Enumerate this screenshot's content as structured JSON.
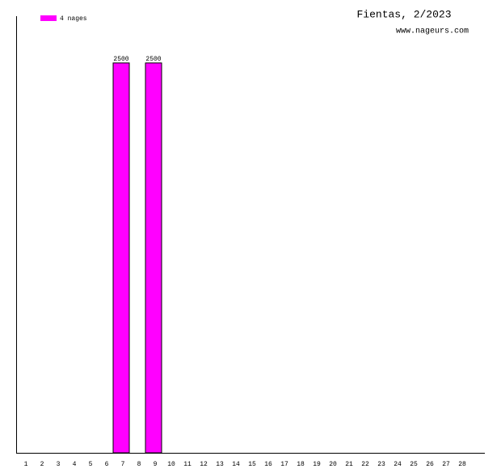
{
  "chart_data": {
    "type": "bar",
    "title": "Fientas, 2/2023",
    "subtitle": "www.nageurs.com",
    "categories": [
      "1",
      "2",
      "3",
      "4",
      "5",
      "6",
      "7",
      "8",
      "9",
      "10",
      "11",
      "12",
      "13",
      "14",
      "15",
      "16",
      "17",
      "18",
      "19",
      "20",
      "21",
      "22",
      "23",
      "24",
      "25",
      "26",
      "27",
      "28"
    ],
    "series": [
      {
        "name": "4 nages",
        "color": "#ff00ff",
        "values": [
          null,
          null,
          null,
          null,
          null,
          null,
          2500,
          null,
          2500,
          null,
          null,
          null,
          null,
          null,
          null,
          null,
          null,
          null,
          null,
          null,
          null,
          null,
          null,
          null,
          null,
          null,
          null,
          null
        ]
      }
    ],
    "ylim": [
      0,
      2800
    ]
  }
}
